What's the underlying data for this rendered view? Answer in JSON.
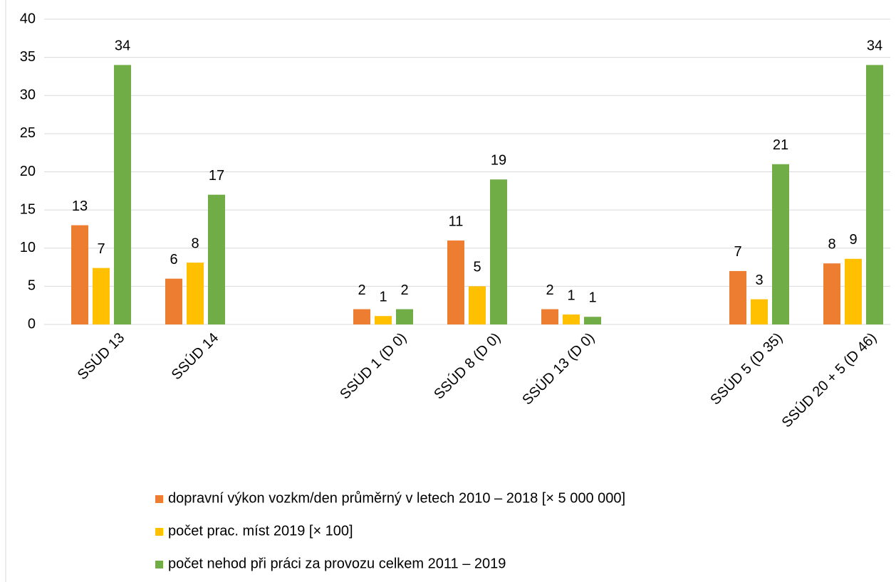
{
  "chart_data": {
    "type": "bar",
    "categories": [
      "SSÚD 13",
      "SSÚD 14",
      null,
      "SSÚD 1 (D 0)",
      "SSÚD 8 (D 0)",
      "SSÚD 13 (D 0)",
      null,
      "SSÚD 5 (D 35)",
      "SSÚD 20 + 5 (D 46)"
    ],
    "series": [
      {
        "name": "dopravní výkon vozkm/den průměrný v letech 2010 – 2018 [× 5 000 000]",
        "color": "#ed7d31",
        "values": [
          13,
          6,
          null,
          2,
          11,
          2,
          null,
          7,
          8
        ]
      },
      {
        "name": "počet prac. míst 2019 [× 100]",
        "color": "#ffc000",
        "values": [
          7.4,
          8.1,
          null,
          1.1,
          5,
          1.3,
          null,
          3.3,
          8.6
        ],
        "value_labels": [
          "7",
          "8",
          null,
          "1",
          "5",
          "1",
          null,
          "3",
          "9"
        ]
      },
      {
        "name": "počet nehod při práci za provozu celkem 2011 – 2019",
        "color": "#70ad47",
        "values": [
          34,
          17,
          null,
          2,
          19,
          1,
          null,
          21,
          34
        ]
      }
    ],
    "ylim": [
      0,
      40
    ],
    "yticks": [
      0,
      5,
      10,
      15,
      20,
      25,
      30,
      35,
      40
    ],
    "grid": true,
    "legend": "bottom"
  }
}
